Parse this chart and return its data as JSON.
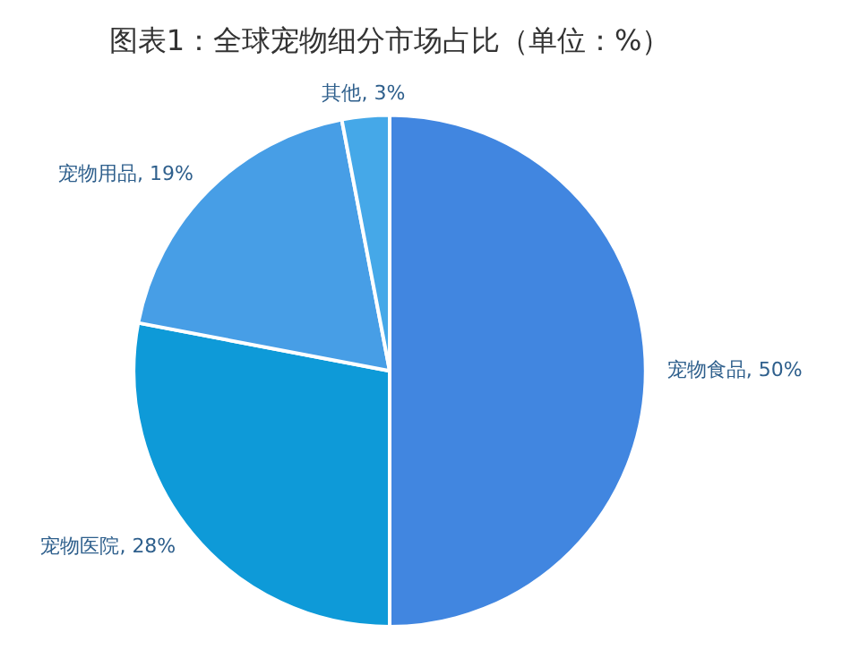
{
  "chart_data": {
    "type": "pie",
    "title": "图表1：全球宠物细分市场占比（单位：%）",
    "categories": [
      "宠物食品",
      "宠物医院",
      "宠物用品",
      "其他"
    ],
    "values": [
      50,
      28,
      19,
      3
    ],
    "value_labels": [
      "50%",
      "28%",
      "19%",
      "3%"
    ],
    "colors": [
      "#4186e0",
      "#0e9ad8",
      "#479ee6",
      "#45a8e8"
    ],
    "legend": false
  }
}
